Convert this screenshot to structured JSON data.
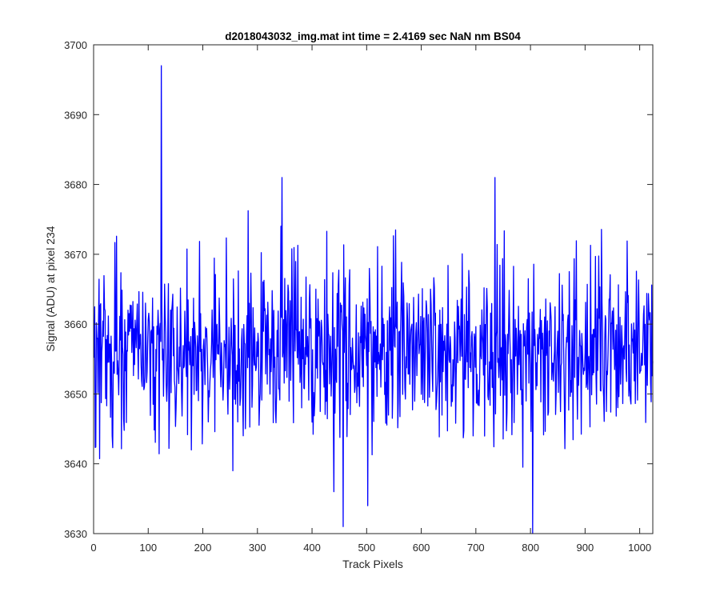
{
  "chart_data": {
    "type": "line",
    "title": "d2018043032_img.mat int time = 2.4169 sec  NaN nm BS04",
    "xlabel": "Track Pixels",
    "ylabel": "Signal (ADU) at pixel 234",
    "xlim": [
      0,
      1024
    ],
    "ylim": [
      3630,
      3700
    ],
    "xticks": [
      0,
      100,
      200,
      300,
      400,
      500,
      600,
      700,
      800,
      900,
      1000
    ],
    "yticks": [
      3630,
      3640,
      3650,
      3660,
      3670,
      3680,
      3690,
      3700
    ],
    "grid": false,
    "legend": "none",
    "series": [
      {
        "color": "#0000ff",
        "baseline": 3656,
        "noise_amplitude": 6,
        "samples": 1024,
        "x_start": 1,
        "peaks": [
          {
            "x": 124,
            "y": 3697
          },
          {
            "x": 345,
            "y": 3681
          },
          {
            "x": 735,
            "y": 3681
          }
        ],
        "troughs": [
          {
            "x": 457,
            "y": 3631
          },
          {
            "x": 502,
            "y": 3634
          },
          {
            "x": 804,
            "y": 3630
          },
          {
            "x": 440,
            "y": 3636
          }
        ]
      }
    ]
  }
}
